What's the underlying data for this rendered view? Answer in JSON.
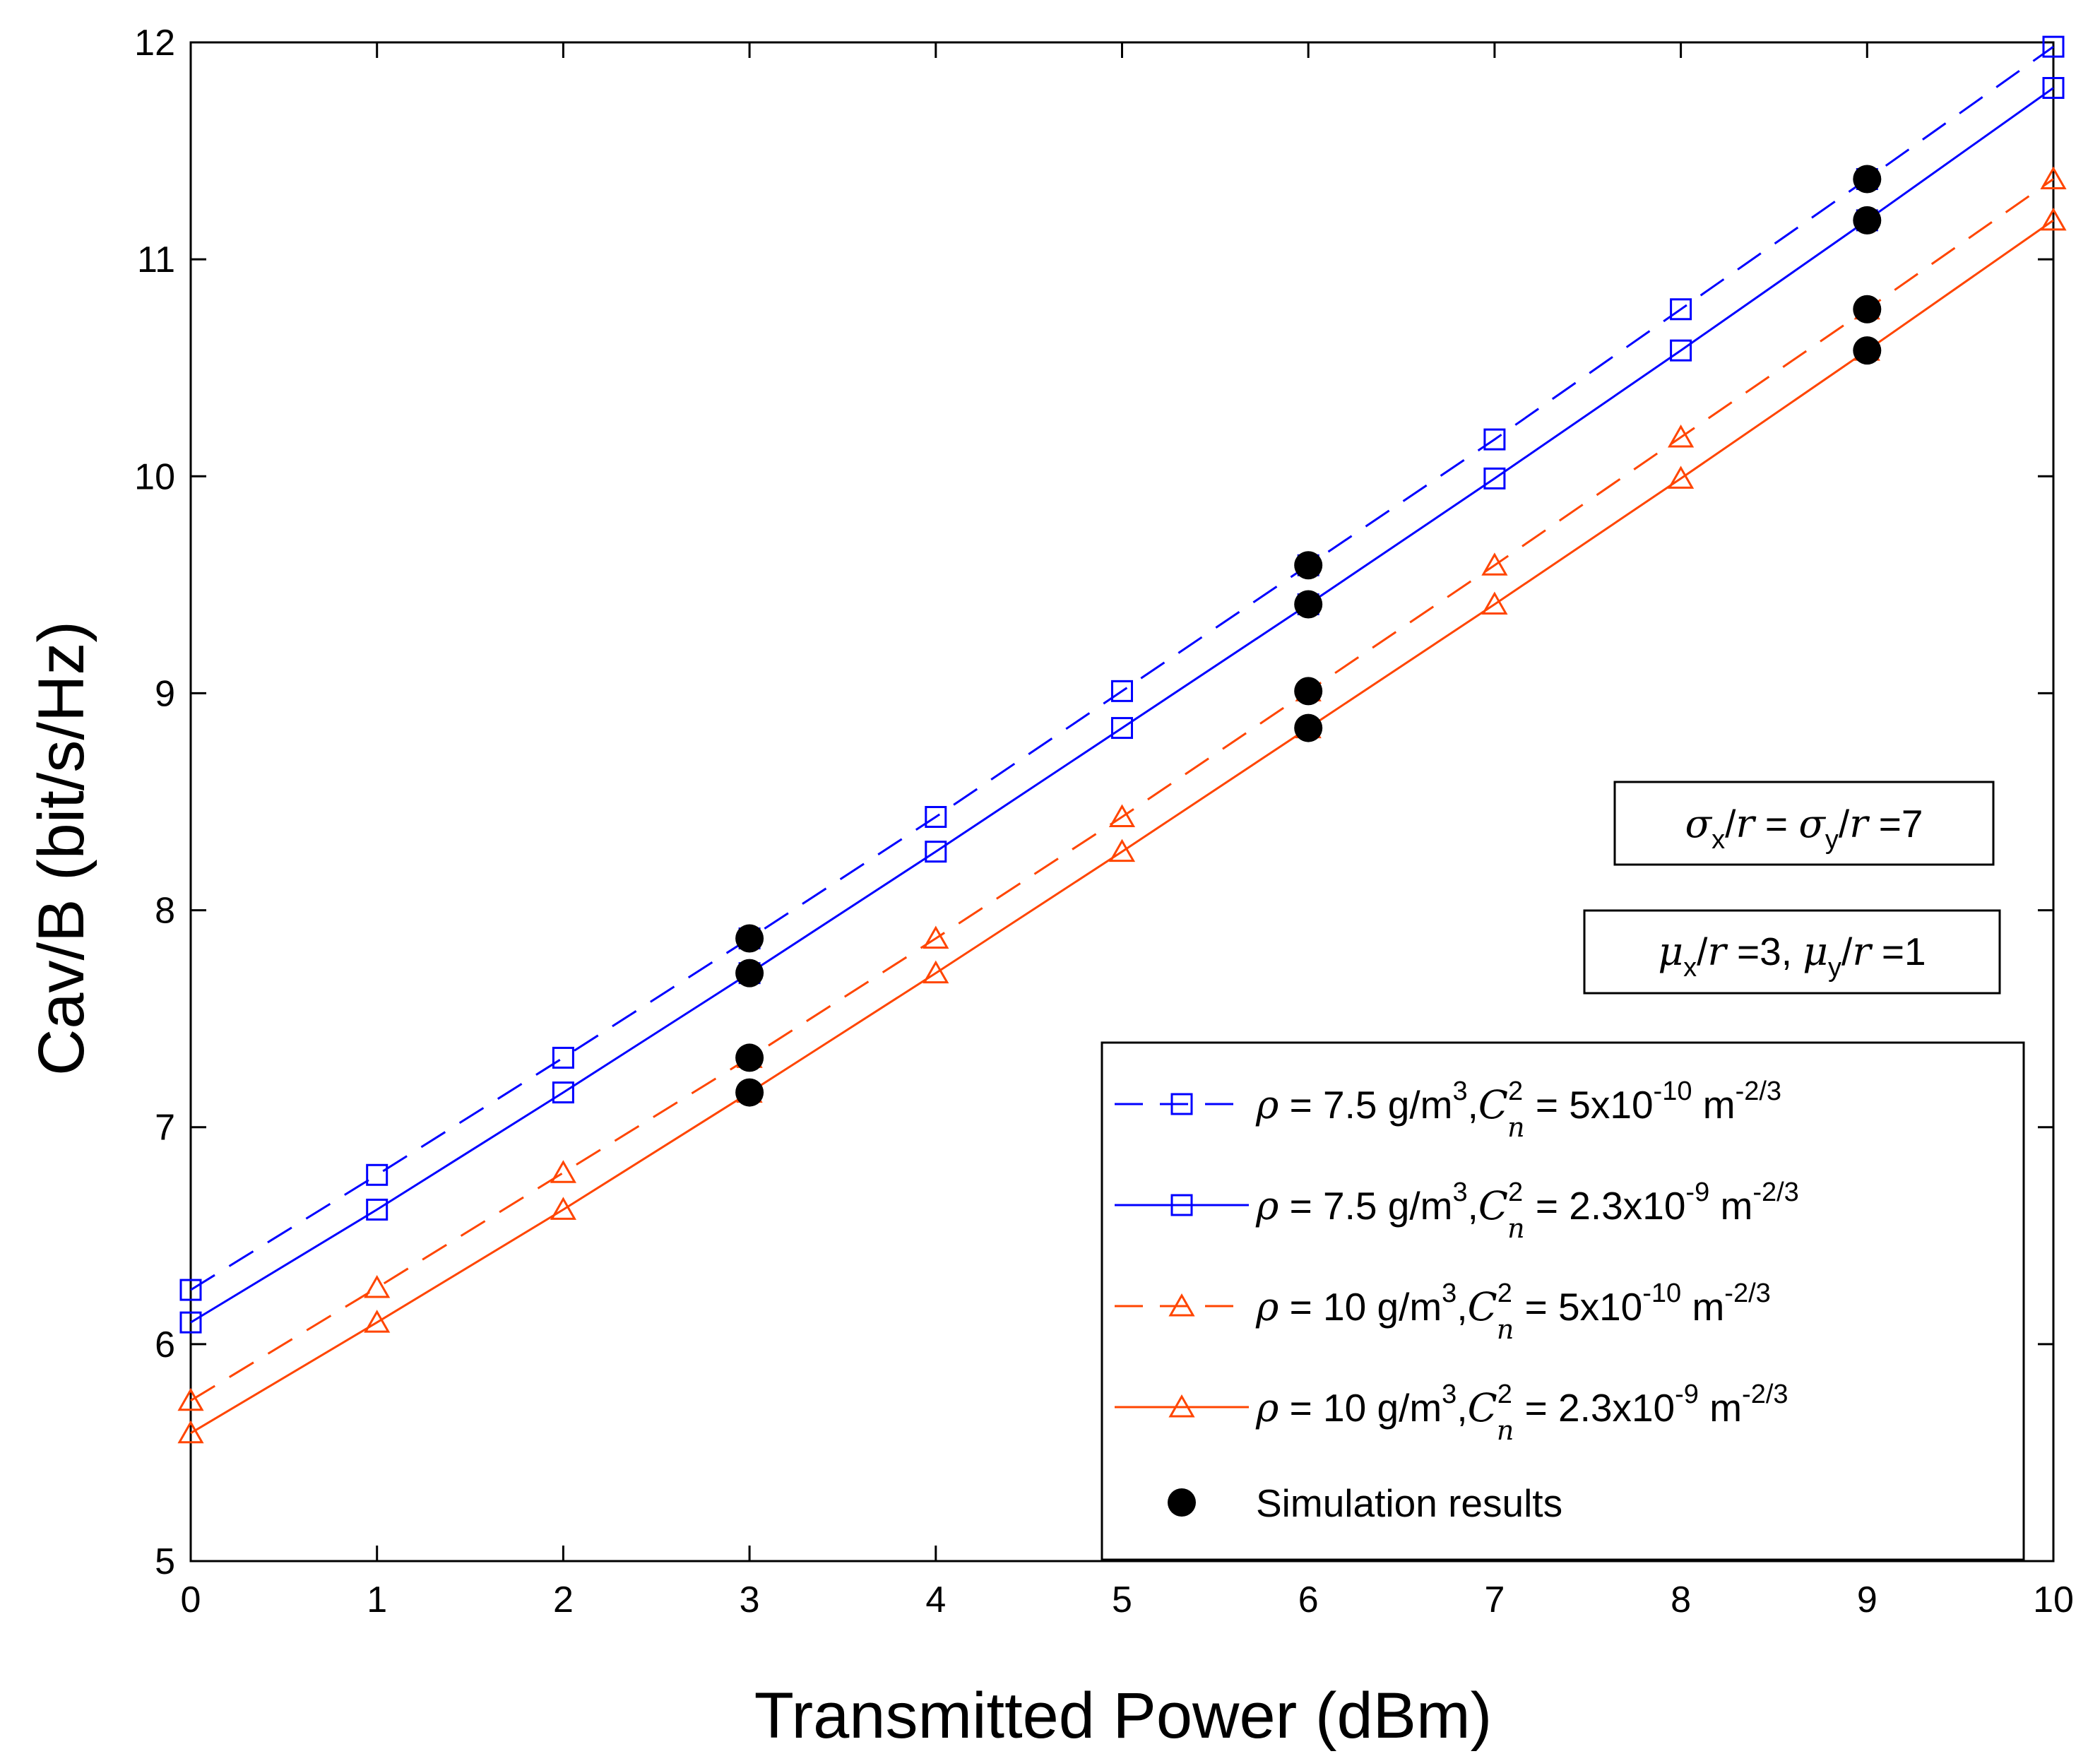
{
  "chart_data": {
    "type": "line",
    "xlabel": "Transmitted Power (dBm)",
    "ylabel": "Cav/B (bit/s/Hz)",
    "xlim": [
      0,
      10
    ],
    "ylim": [
      5,
      12
    ],
    "x_ticks": [
      "0",
      "1",
      "2",
      "3",
      "4",
      "5",
      "6",
      "7",
      "8",
      "9",
      "10"
    ],
    "y_ticks": [
      "5",
      "6",
      "7",
      "8",
      "9",
      "10",
      "11",
      "12"
    ],
    "x": [
      0,
      1,
      2,
      3,
      4,
      5,
      6,
      7,
      8,
      9,
      10
    ],
    "series": [
      {
        "name": "ρ = 7.5 g/m3, Cn2 = 5x10-10 m-2/3",
        "legend": {
          "rho": "ρ",
          "rest1": " = 7.5 g/m",
          "sup1": "3",
          "comma": ",",
          "c": "C",
          "cexp": "2",
          "csub": "n",
          "rest2": " = 5x10",
          "sup2": "-10",
          "rest3": " m",
          "sup3": "-2/3"
        },
        "color": "#0000ff",
        "line_style": "dashed",
        "marker": "square",
        "values": [
          6.25,
          6.78,
          7.32,
          7.87,
          8.43,
          9.01,
          9.59,
          10.17,
          10.77,
          11.37,
          11.98
        ]
      },
      {
        "name": "ρ = 7.5 g/m3, Cn2 = 2.3x10-9 m-2/3",
        "legend": {
          "rho": "ρ",
          "rest1": " = 7.5 g/m",
          "sup1": "3",
          "comma": ",",
          "c": "C",
          "cexp": "2",
          "csub": "n",
          "rest2": " = 2.3x10",
          "sup2": "-9",
          "rest3": " m",
          "sup3": "-2/3"
        },
        "color": "#0000ff",
        "line_style": "solid",
        "marker": "square",
        "values": [
          6.1,
          6.62,
          7.16,
          7.71,
          8.27,
          8.84,
          9.41,
          9.99,
          10.58,
          11.18,
          11.79
        ]
      },
      {
        "name": "ρ = 10 g/m3, Cn2 = 5x10-10 m-2/3",
        "legend": {
          "rho": "ρ",
          "rest1": " = 10 g/m",
          "sup1": "3",
          "comma": ",",
          "c": "C",
          "cexp": "2",
          "csub": "n",
          "rest2": " = 5x10",
          "sup2": "-10",
          "rest3": " m",
          "sup3": "-2/3"
        },
        "color": "#ff4500",
        "line_style": "dashed",
        "marker": "triangle",
        "values": [
          5.74,
          6.26,
          6.79,
          7.32,
          7.87,
          8.43,
          9.01,
          9.59,
          10.18,
          10.77,
          11.37
        ]
      },
      {
        "name": "ρ = 10 g/m3, Cn2 = 2.3x10-9 m-2/3",
        "legend": {
          "rho": "ρ",
          "rest1": " = 10 g/m",
          "sup1": "3",
          "comma": ",",
          "c": "C",
          "cexp": "2",
          "csub": "n",
          "rest2": " = 2.3x10",
          "sup2": "-9",
          "rest3": " m",
          "sup3": "-2/3"
        },
        "color": "#ff4500",
        "line_style": "solid",
        "marker": "triangle",
        "values": [
          5.59,
          6.1,
          6.62,
          7.16,
          7.71,
          8.27,
          8.84,
          9.41,
          9.99,
          10.58,
          11.18
        ]
      }
    ],
    "simulation": {
      "name": "Simulation results",
      "color": "#000000",
      "marker": "filled-circle",
      "points": [
        {
          "x": 3,
          "y": 7.87
        },
        {
          "x": 3,
          "y": 7.71
        },
        {
          "x": 3,
          "y": 7.32
        },
        {
          "x": 3,
          "y": 7.16
        },
        {
          "x": 6,
          "y": 9.59
        },
        {
          "x": 6,
          "y": 9.41
        },
        {
          "x": 6,
          "y": 9.01
        },
        {
          "x": 6,
          "y": 8.84
        },
        {
          "x": 9,
          "y": 11.37
        },
        {
          "x": 9,
          "y": 11.18
        },
        {
          "x": 9,
          "y": 10.77
        },
        {
          "x": 9,
          "y": 10.58
        }
      ]
    },
    "annotations": [
      {
        "parts": [
          {
            "t": "σ",
            "k": "math"
          },
          {
            "t": "x",
            "k": "sub"
          },
          {
            "t": "/",
            "k": "text"
          },
          {
            "t": "r",
            "k": "math"
          },
          {
            "t": " = ",
            "k": "text"
          },
          {
            "t": "σ",
            "k": "math"
          },
          {
            "t": "y",
            "k": "sub"
          },
          {
            "t": "/",
            "k": "text"
          },
          {
            "t": "r",
            "k": "math"
          },
          {
            "t": " =7",
            "k": "text"
          }
        ]
      },
      {
        "parts": [
          {
            "t": "μ",
            "k": "math"
          },
          {
            "t": "x",
            "k": "sub"
          },
          {
            "t": "/",
            "k": "text"
          },
          {
            "t": "r",
            "k": "math"
          },
          {
            "t": " =3, ",
            "k": "text"
          },
          {
            "t": "μ",
            "k": "math"
          },
          {
            "t": "y",
            "k": "sub"
          },
          {
            "t": "/",
            "k": "text"
          },
          {
            "t": "r",
            "k": "math"
          },
          {
            "t": " =1",
            "k": "text"
          }
        ]
      }
    ],
    "legend_position": "lower-right",
    "grid": false
  }
}
